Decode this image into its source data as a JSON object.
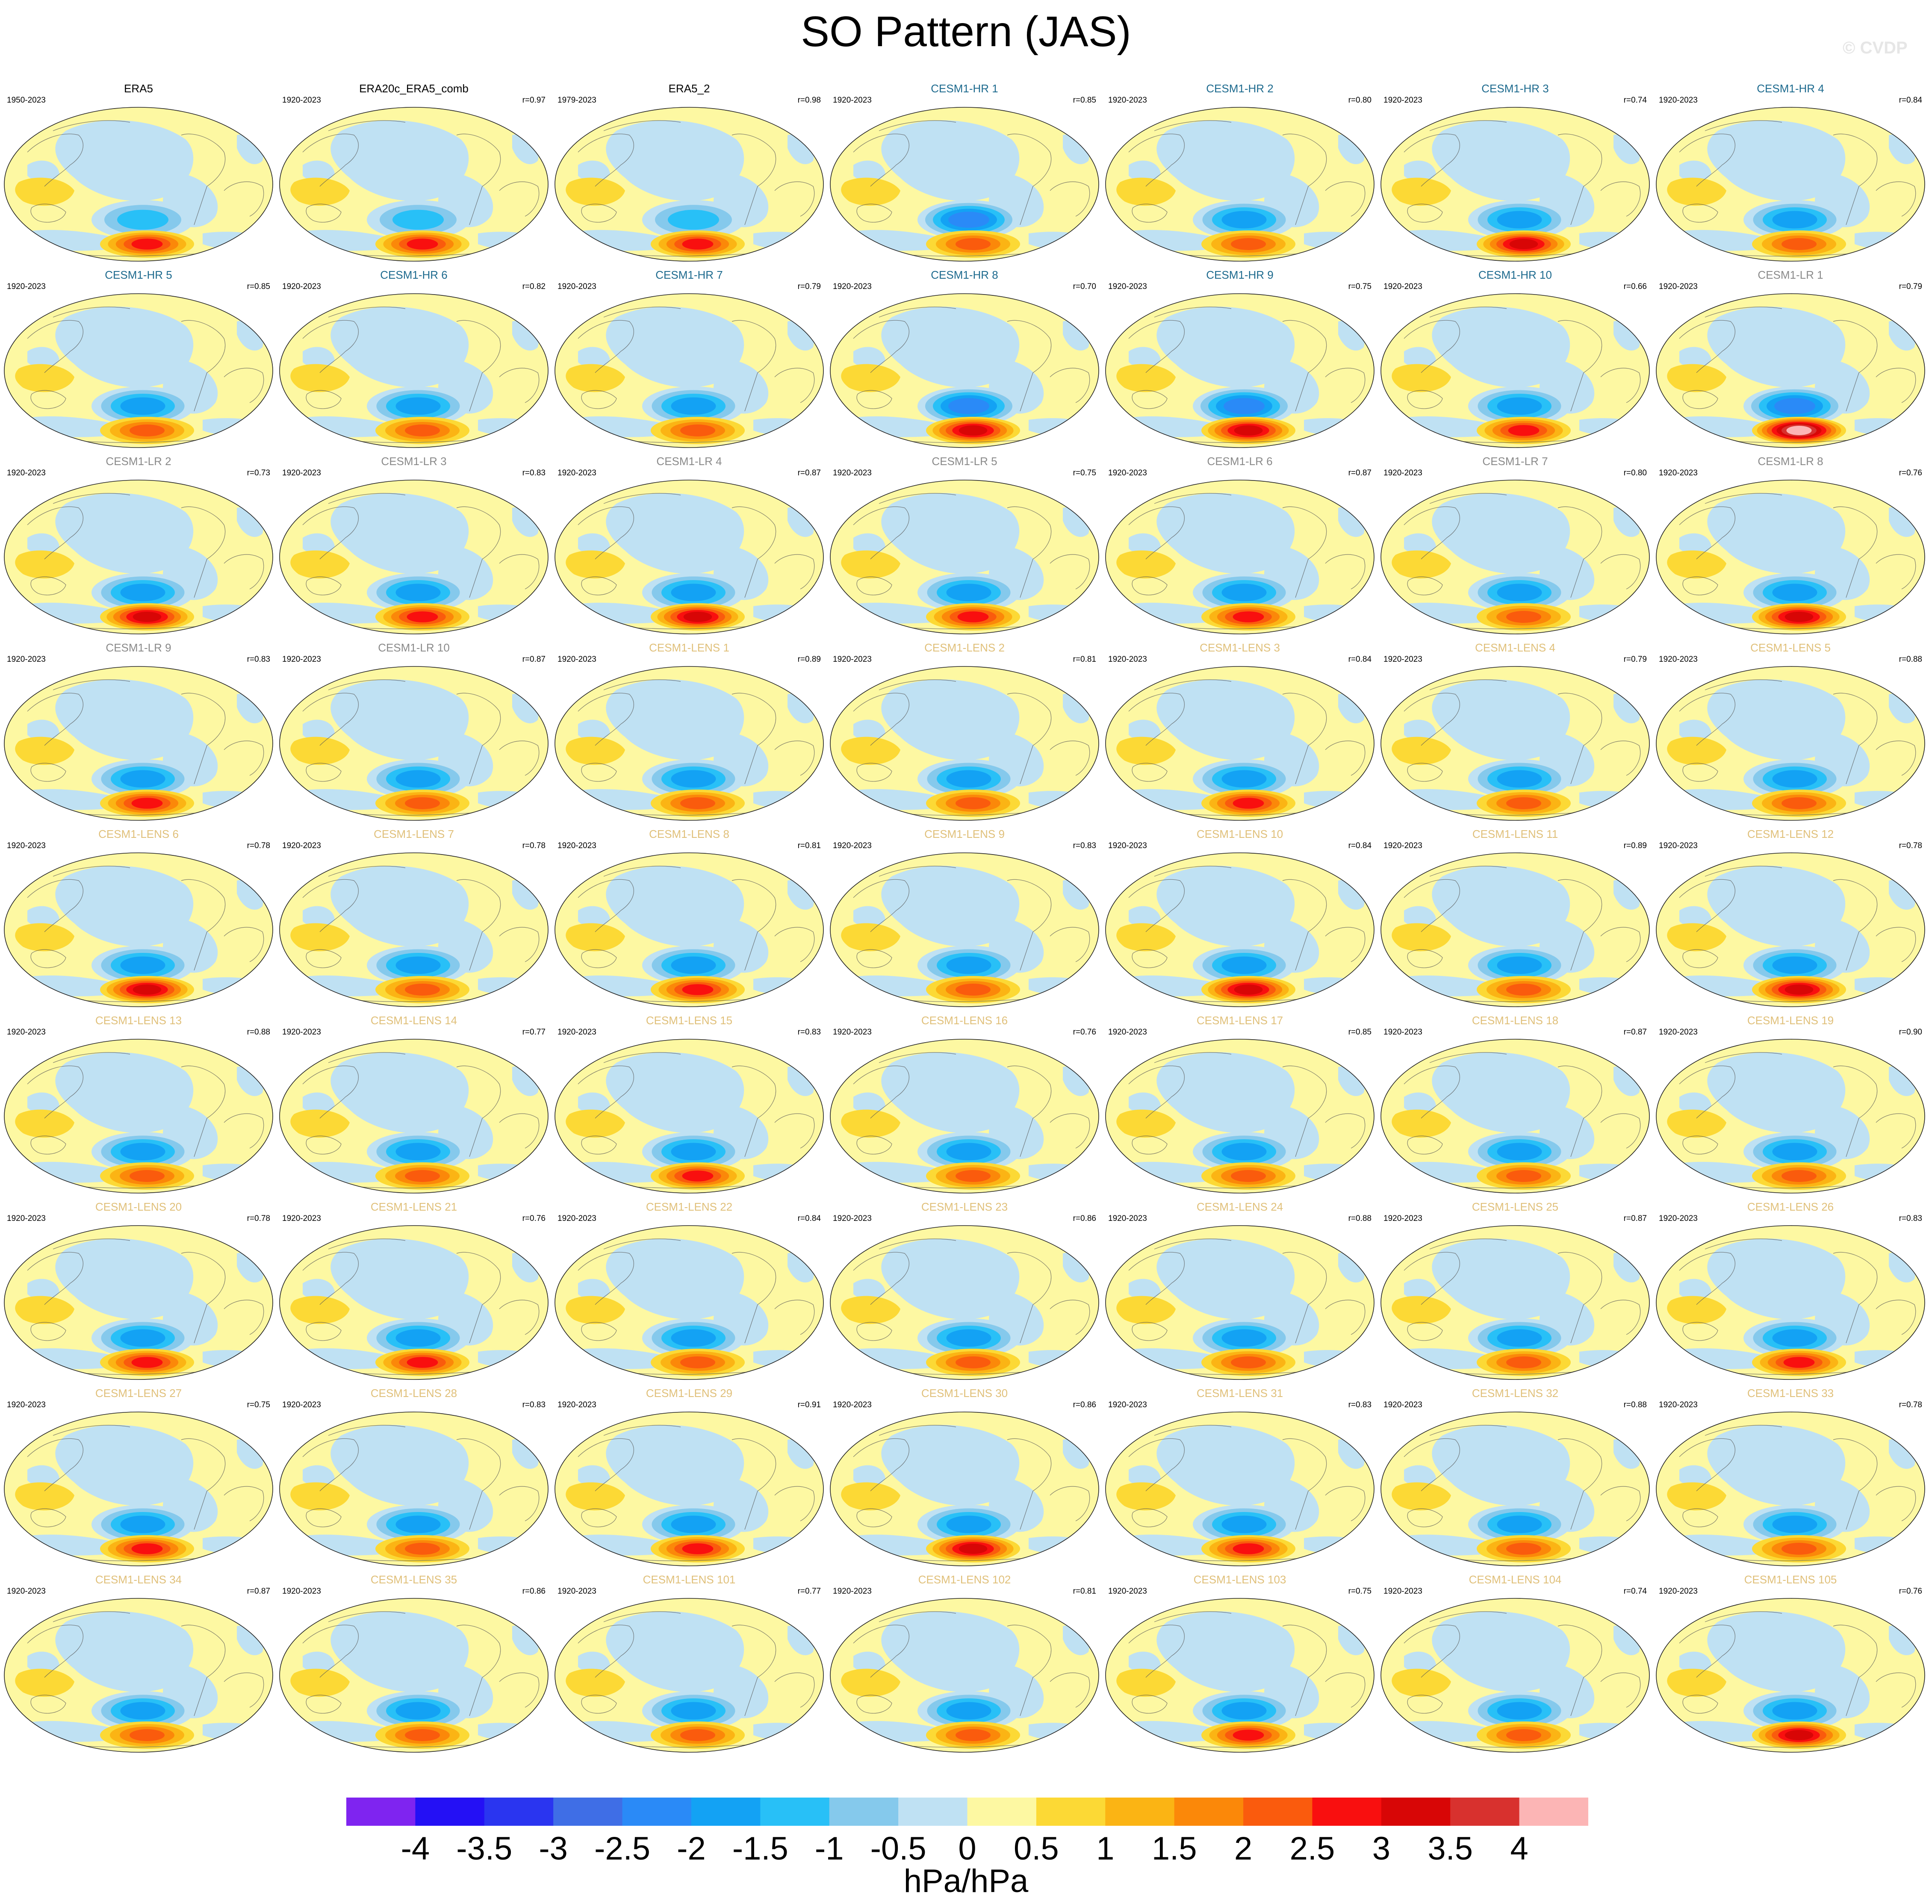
{
  "title": "SO Pattern (JAS)",
  "credit": "© CVDP",
  "colors": {
    "levels": [
      "#7f24f0",
      "#2410f5",
      "#2a35f0",
      "#3f6ee6",
      "#2a8af7",
      "#13a2f4",
      "#28c0f7",
      "#85c9ec",
      "#bfe1f3",
      "#fdf8a2",
      "#fcd935",
      "#fbb414",
      "#fb8809",
      "#fa5b0d",
      "#f90f0f",
      "#d80606",
      "#d8312e",
      "#fcb5b5"
    ],
    "title_obs": "#000000",
    "title_cesm1_hr": "#1d6a8e",
    "title_cesm1_lr": "#8a8a8a",
    "title_cesm1_lens": "#e0c07a"
  },
  "colorbar": {
    "ticks": [
      "-4",
      "-3.5",
      "-3",
      "-2.5",
      "-2",
      "-1.5",
      "-1",
      "-0.5",
      "0",
      "0.5",
      "1",
      "1.5",
      "2",
      "2.5",
      "3",
      "3.5",
      "4"
    ],
    "units": "hPa/hPa"
  },
  "panels": [
    {
      "name": "ERA5",
      "years": "1950-2023",
      "r": "",
      "group": "obs",
      "pos": 2.2,
      "neg": 1.5
    },
    {
      "name": "ERA20c_ERA5_comb",
      "years": "1920-2023",
      "r": "r=0.97",
      "group": "obs",
      "pos": 2.2,
      "neg": 1.4
    },
    {
      "name": "ERA5_2",
      "years": "1979-2023",
      "r": "r=0.98",
      "group": "obs",
      "pos": 2.4,
      "neg": 1.5
    },
    {
      "name": "CESM1-HR 1",
      "years": "1920-2023",
      "r": "r=0.85",
      "group": "hr",
      "pos": 1.8,
      "neg": 2.2
    },
    {
      "name": "CESM1-HR 2",
      "years": "1920-2023",
      "r": "r=0.80",
      "group": "hr",
      "pos": 1.6,
      "neg": 2.0
    },
    {
      "name": "CESM1-HR 3",
      "years": "1920-2023",
      "r": "r=0.74",
      "group": "hr",
      "pos": 2.6,
      "neg": 1.8
    },
    {
      "name": "CESM1-HR 4",
      "years": "1920-2023",
      "r": "r=0.84",
      "group": "hr",
      "pos": 2.0,
      "neg": 1.8
    },
    {
      "name": "CESM1-HR 5",
      "years": "1920-2023",
      "r": "r=0.85",
      "group": "hr",
      "pos": 1.6,
      "neg": 2.0
    },
    {
      "name": "CESM1-HR 6",
      "years": "1920-2023",
      "r": "r=0.82",
      "group": "hr",
      "pos": 2.0,
      "neg": 1.8
    },
    {
      "name": "CESM1-HR 7",
      "years": "1920-2023",
      "r": "r=0.79",
      "group": "hr",
      "pos": 2.0,
      "neg": 2.0
    },
    {
      "name": "CESM1-HR 8",
      "years": "1920-2023",
      "r": "r=0.70",
      "group": "hr",
      "pos": 2.6,
      "neg": 2.2
    },
    {
      "name": "CESM1-HR 9",
      "years": "1920-2023",
      "r": "r=0.75",
      "group": "hr",
      "pos": 3.0,
      "neg": 2.2
    },
    {
      "name": "CESM1-HR 10",
      "years": "1920-2023",
      "r": "r=0.66",
      "group": "hr",
      "pos": 2.2,
      "neg": 2.0
    },
    {
      "name": "CESM1-LR 1",
      "years": "1920-2023",
      "r": "r=0.79",
      "group": "lr",
      "pos": 3.8,
      "neg": 2.2
    },
    {
      "name": "CESM1-LR 2",
      "years": "1920-2023",
      "r": "r=0.73",
      "group": "lr",
      "pos": 3.0,
      "neg": 2.0
    },
    {
      "name": "CESM1-LR 3",
      "years": "1920-2023",
      "r": "r=0.83",
      "group": "lr",
      "pos": 2.2,
      "neg": 1.8
    },
    {
      "name": "CESM1-LR 4",
      "years": "1920-2023",
      "r": "r=0.87",
      "group": "lr",
      "pos": 3.0,
      "neg": 1.8
    },
    {
      "name": "CESM1-LR 5",
      "years": "1920-2023",
      "r": "r=0.75",
      "group": "lr",
      "pos": 2.2,
      "neg": 1.8
    },
    {
      "name": "CESM1-LR 6",
      "years": "1920-2023",
      "r": "r=0.87",
      "group": "lr",
      "pos": 2.4,
      "neg": 1.8
    },
    {
      "name": "CESM1-LR 7",
      "years": "1920-2023",
      "r": "r=0.80",
      "group": "lr",
      "pos": 2.0,
      "neg": 1.8
    },
    {
      "name": "CESM1-LR 8",
      "years": "1920-2023",
      "r": "r=0.76",
      "group": "lr",
      "pos": 3.0,
      "neg": 1.8
    },
    {
      "name": "CESM1-LR 9",
      "years": "1920-2023",
      "r": "r=0.83",
      "group": "lr",
      "pos": 2.4,
      "neg": 2.0
    },
    {
      "name": "CESM1-LR 10",
      "years": "1920-2023",
      "r": "r=0.87",
      "group": "lr",
      "pos": 2.0,
      "neg": 1.8
    },
    {
      "name": "CESM1-LENS 1",
      "years": "1920-2023",
      "r": "r=0.89",
      "group": "lens",
      "pos": 1.6,
      "neg": 1.8
    },
    {
      "name": "CESM1-LENS 2",
      "years": "1920-2023",
      "r": "r=0.81",
      "group": "lens",
      "pos": 2.0,
      "neg": 1.8
    },
    {
      "name": "CESM1-LENS 3",
      "years": "1920-2023",
      "r": "r=0.84",
      "group": "lens",
      "pos": 2.2,
      "neg": 1.8
    },
    {
      "name": "CESM1-LENS 4",
      "years": "1920-2023",
      "r": "r=0.79",
      "group": "lens",
      "pos": 2.0,
      "neg": 1.8
    },
    {
      "name": "CESM1-LENS 5",
      "years": "1920-2023",
      "r": "r=0.88",
      "group": "lens",
      "pos": 1.8,
      "neg": 2.0
    },
    {
      "name": "CESM1-LENS 6",
      "years": "1920-2023",
      "r": "r=0.78",
      "group": "lens",
      "pos": 2.6,
      "neg": 1.8
    },
    {
      "name": "CESM1-LENS 7",
      "years": "1920-2023",
      "r": "r=0.78",
      "group": "lens",
      "pos": 2.0,
      "neg": 1.8
    },
    {
      "name": "CESM1-LENS 8",
      "years": "1920-2023",
      "r": "r=0.81",
      "group": "lens",
      "pos": 2.4,
      "neg": 2.0
    },
    {
      "name": "CESM1-LENS 9",
      "years": "1920-2023",
      "r": "r=0.83",
      "group": "lens",
      "pos": 1.8,
      "neg": 2.0
    },
    {
      "name": "CESM1-LENS 10",
      "years": "1920-2023",
      "r": "r=0.84",
      "group": "lens",
      "pos": 2.6,
      "neg": 1.8
    },
    {
      "name": "CESM1-LENS 11",
      "years": "1920-2023",
      "r": "r=0.89",
      "group": "lens",
      "pos": 2.0,
      "neg": 1.8
    },
    {
      "name": "CESM1-LENS 12",
      "years": "1920-2023",
      "r": "r=0.78",
      "group": "lens",
      "pos": 2.6,
      "neg": 1.8
    },
    {
      "name": "CESM1-LENS 13",
      "years": "1920-2023",
      "r": "r=0.88",
      "group": "lens",
      "pos": 1.8,
      "neg": 1.8
    },
    {
      "name": "CESM1-LENS 14",
      "years": "1920-2023",
      "r": "r=0.77",
      "group": "lens",
      "pos": 2.0,
      "neg": 1.6
    },
    {
      "name": "CESM1-LENS 15",
      "years": "1920-2023",
      "r": "r=0.83",
      "group": "lens",
      "pos": 2.4,
      "neg": 2.0
    },
    {
      "name": "CESM1-LENS 16",
      "years": "1920-2023",
      "r": "r=0.76",
      "group": "lens",
      "pos": 2.0,
      "neg": 2.0
    },
    {
      "name": "CESM1-LENS 17",
      "years": "1920-2023",
      "r": "r=0.85",
      "group": "lens",
      "pos": 2.0,
      "neg": 1.8
    },
    {
      "name": "CESM1-LENS 18",
      "years": "1920-2023",
      "r": "r=0.87",
      "group": "lens",
      "pos": 2.0,
      "neg": 2.0
    },
    {
      "name": "CESM1-LENS 19",
      "years": "1920-2023",
      "r": "r=0.90",
      "group": "lens",
      "pos": 1.6,
      "neg": 2.0
    },
    {
      "name": "CESM1-LENS 20",
      "years": "1920-2023",
      "r": "r=0.78",
      "group": "lens",
      "pos": 2.4,
      "neg": 2.0
    },
    {
      "name": "CESM1-LENS 21",
      "years": "1920-2023",
      "r": "r=0.76",
      "group": "lens",
      "pos": 2.4,
      "neg": 1.8
    },
    {
      "name": "CESM1-LENS 22",
      "years": "1920-2023",
      "r": "r=0.84",
      "group": "lens",
      "pos": 1.8,
      "neg": 1.6
    },
    {
      "name": "CESM1-LENS 23",
      "years": "1920-2023",
      "r": "r=0.86",
      "group": "lens",
      "pos": 2.0,
      "neg": 1.8
    },
    {
      "name": "CESM1-LENS 24",
      "years": "1920-2023",
      "r": "r=0.88",
      "group": "lens",
      "pos": 1.8,
      "neg": 1.8
    },
    {
      "name": "CESM1-LENS 25",
      "years": "1920-2023",
      "r": "r=0.87",
      "group": "lens",
      "pos": 1.8,
      "neg": 1.8
    },
    {
      "name": "CESM1-LENS 26",
      "years": "1920-2023",
      "r": "r=0.83",
      "group": "lens",
      "pos": 2.2,
      "neg": 1.8
    },
    {
      "name": "CESM1-LENS 27",
      "years": "1920-2023",
      "r": "r=0.75",
      "group": "lens",
      "pos": 2.4,
      "neg": 1.8
    },
    {
      "name": "CESM1-LENS 28",
      "years": "1920-2023",
      "r": "r=0.83",
      "group": "lens",
      "pos": 2.0,
      "neg": 1.8
    },
    {
      "name": "CESM1-LENS 29",
      "years": "1920-2023",
      "r": "r=0.91",
      "group": "lens",
      "pos": 2.2,
      "neg": 1.8
    },
    {
      "name": "CESM1-LENS 30",
      "years": "1920-2023",
      "r": "r=0.86",
      "group": "lens",
      "pos": 2.6,
      "neg": 1.8
    },
    {
      "name": "CESM1-LENS 31",
      "years": "1920-2023",
      "r": "r=0.83",
      "group": "lens",
      "pos": 2.2,
      "neg": 1.8
    },
    {
      "name": "CESM1-LENS 32",
      "years": "1920-2023",
      "r": "r=0.88",
      "group": "lens",
      "pos": 1.8,
      "neg": 1.8
    },
    {
      "name": "CESM1-LENS 33",
      "years": "1920-2023",
      "r": "r=0.78",
      "group": "lens",
      "pos": 2.0,
      "neg": 1.6
    },
    {
      "name": "CESM1-LENS 34",
      "years": "1920-2023",
      "r": "r=0.87",
      "group": "lens",
      "pos": 1.8,
      "neg": 1.8
    },
    {
      "name": "CESM1-LENS 35",
      "years": "1920-2023",
      "r": "r=0.86",
      "group": "lens",
      "pos": 2.0,
      "neg": 1.8
    },
    {
      "name": "CESM1-LENS 101",
      "years": "1920-2023",
      "r": "r=0.77",
      "group": "lens",
      "pos": 2.0,
      "neg": 1.8
    },
    {
      "name": "CESM1-LENS 102",
      "years": "1920-2023",
      "r": "r=0.81",
      "group": "lens",
      "pos": 2.0,
      "neg": 1.8
    },
    {
      "name": "CESM1-LENS 103",
      "years": "1920-2023",
      "r": "r=0.75",
      "group": "lens",
      "pos": 2.2,
      "neg": 1.8
    },
    {
      "name": "CESM1-LENS 104",
      "years": "1920-2023",
      "r": "r=0.74",
      "group": "lens",
      "pos": 1.8,
      "neg": 1.8
    },
    {
      "name": "CESM1-LENS 105",
      "years": "1920-2023",
      "r": "r=0.76",
      "group": "lens",
      "pos": 2.6,
      "neg": 1.8
    }
  ]
}
